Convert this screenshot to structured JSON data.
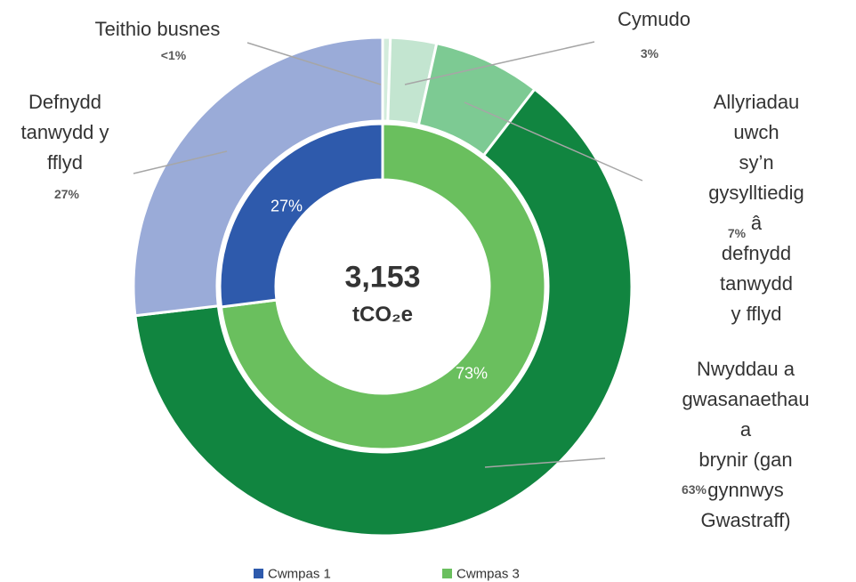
{
  "chart_data": {
    "type": "donut",
    "center_label": "3,153",
    "center_unit": "tCO₂e",
    "inner": {
      "categories": [
        "Cwmpas 3",
        "Cwmpas 1"
      ],
      "values": [
        73,
        27
      ],
      "value_labels": [
        "73%",
        "27%"
      ],
      "colors": [
        "#6abf5e",
        "#2e5aac"
      ]
    },
    "outer": {
      "categories": [
        "Teithio busnes",
        "Cymudo",
        "Allyriadau uwch\nsy’n gysylltiedig â\ndefnydd tanwydd\ny fflyd",
        "Nwyddau a\ngwasanaethau a\nbrynir (gan gynnwys\nGwastraff)",
        "Defnydd\ntanwydd y\nfflyd"
      ],
      "values": [
        0.5,
        3,
        7,
        63,
        27
      ],
      "value_labels": [
        "<1%",
        "3%",
        "7%",
        "63%",
        "27%"
      ],
      "colors": [
        "#d3ecdc",
        "#c3e5d0",
        "#7dca93",
        "#118540",
        "#9aabd8"
      ]
    }
  }
}
